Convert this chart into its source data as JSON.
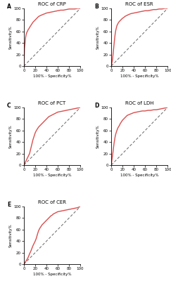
{
  "titles": [
    "ROC of CRP",
    "ROC of ESR",
    "ROC of PCT",
    "ROC of LDH",
    "ROC of CER"
  ],
  "panel_labels": [
    "A",
    "B",
    "C",
    "D",
    "E"
  ],
  "line_color": "#d94f4f",
  "diag_color": "#666666",
  "background": "#ffffff",
  "xlabel": "100% - Specificity%",
  "ylabel": "Sensitivity%",
  "xlim": [
    0,
    100
  ],
  "ylim": [
    0,
    100
  ],
  "xticks": [
    0,
    20,
    40,
    60,
    80,
    100
  ],
  "yticks": [
    0,
    20,
    40,
    60,
    80,
    100
  ],
  "crp_x": [
    0,
    1,
    2,
    3,
    4,
    5,
    6,
    7,
    8,
    9,
    10,
    12,
    14,
    16,
    18,
    20,
    22,
    24,
    26,
    28,
    30,
    35,
    40,
    45,
    50,
    55,
    60,
    65,
    70,
    75,
    80,
    85,
    90,
    95,
    100
  ],
  "crp_y": [
    0,
    30,
    40,
    50,
    55,
    58,
    60,
    62,
    64,
    65,
    67,
    70,
    73,
    76,
    78,
    80,
    82,
    84,
    86,
    87,
    88,
    90,
    92,
    93,
    94,
    95,
    96,
    97,
    97,
    98,
    99,
    99,
    99,
    100,
    100
  ],
  "esr_x": [
    0,
    1,
    2,
    3,
    4,
    5,
    6,
    7,
    8,
    9,
    10,
    12,
    14,
    16,
    18,
    20,
    22,
    24,
    26,
    28,
    30,
    35,
    40,
    45,
    50,
    55,
    60,
    65,
    70,
    75,
    80,
    85,
    90,
    95,
    100
  ],
  "esr_y": [
    0,
    5,
    10,
    18,
    28,
    38,
    48,
    56,
    62,
    66,
    70,
    74,
    77,
    79,
    81,
    83,
    84,
    86,
    87,
    88,
    89,
    91,
    92,
    93,
    94,
    95,
    96,
    96,
    97,
    98,
    98,
    99,
    99,
    100,
    100
  ],
  "pct_x": [
    0,
    2,
    4,
    6,
    8,
    10,
    12,
    14,
    16,
    18,
    20,
    22,
    24,
    26,
    28,
    30,
    32,
    34,
    36,
    38,
    40,
    42,
    44,
    46,
    48,
    50,
    52,
    54,
    56,
    58,
    60,
    65,
    70,
    75,
    80,
    85,
    90,
    95,
    100
  ],
  "pct_y": [
    0,
    4,
    8,
    12,
    16,
    20,
    28,
    36,
    44,
    50,
    56,
    60,
    63,
    66,
    68,
    70,
    72,
    74,
    76,
    78,
    80,
    82,
    84,
    85,
    86,
    87,
    88,
    89,
    90,
    91,
    92,
    93,
    94,
    95,
    96,
    97,
    98,
    99,
    100
  ],
  "ldh_x": [
    0,
    1,
    2,
    3,
    4,
    5,
    6,
    7,
    8,
    9,
    10,
    12,
    14,
    16,
    18,
    20,
    22,
    24,
    26,
    28,
    30,
    35,
    40,
    45,
    50,
    55,
    60,
    65,
    70,
    75,
    80,
    85,
    90,
    95,
    100
  ],
  "ldh_y": [
    0,
    8,
    15,
    22,
    30,
    38,
    44,
    50,
    54,
    57,
    60,
    65,
    68,
    72,
    75,
    78,
    80,
    82,
    84,
    86,
    87,
    89,
    91,
    92,
    93,
    94,
    94,
    95,
    95,
    96,
    96,
    97,
    98,
    99,
    100
  ],
  "cer_x": [
    0,
    2,
    4,
    6,
    8,
    10,
    12,
    14,
    16,
    18,
    20,
    22,
    24,
    26,
    28,
    30,
    32,
    34,
    36,
    38,
    40,
    42,
    44,
    46,
    48,
    50,
    52,
    54,
    56,
    58,
    60,
    65,
    70,
    75,
    80,
    85,
    90,
    95,
    100
  ],
  "cer_y": [
    0,
    3,
    6,
    9,
    13,
    18,
    22,
    27,
    32,
    36,
    40,
    45,
    52,
    58,
    62,
    65,
    68,
    70,
    72,
    74,
    76,
    78,
    80,
    82,
    84,
    85,
    87,
    88,
    89,
    90,
    91,
    92,
    93,
    94,
    95,
    96,
    97,
    98,
    100
  ]
}
